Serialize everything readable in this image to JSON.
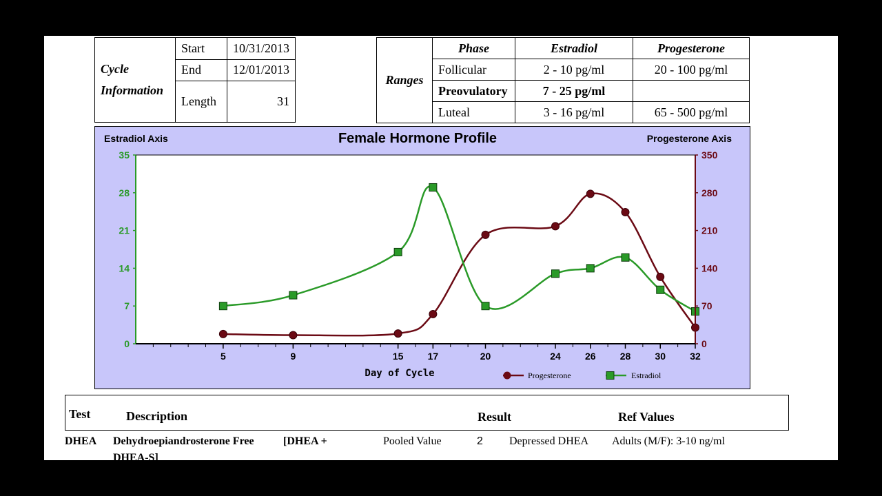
{
  "cycle_info": {
    "label_line1": "Cycle",
    "label_line2": "Information",
    "start_label": "Start",
    "start_value": "10/31/2013",
    "end_label": "End",
    "end_value": "12/01/2013",
    "length_label": "Length",
    "length_value": "31"
  },
  "ranges": {
    "label": "Ranges",
    "headers": [
      "Phase",
      "Estradiol",
      "Progesterone"
    ],
    "rows": [
      {
        "phase": "Follicular",
        "estradiol": "2 - 10 pg/ml",
        "progesterone": "20 - 100 pg/ml"
      },
      {
        "phase": "Preovulatory",
        "estradiol": "7 - 25 pg/ml",
        "progesterone": ""
      },
      {
        "phase": "Luteal",
        "estradiol": "3 - 16 pg/ml",
        "progesterone": "65 - 500 pg/ml"
      }
    ]
  },
  "chart_data": {
    "type": "line",
    "title": "Female Hormone Profile",
    "left_axis_label": "Estradiol Axis",
    "right_axis_label": "Progesterone Axis",
    "xlabel": "Day of Cycle",
    "x": [
      5,
      9,
      15,
      17,
      20,
      24,
      26,
      28,
      30,
      32
    ],
    "x_ticks": [
      "5",
      "9",
      "15",
      "17",
      "20",
      "24",
      "26",
      "28",
      "30",
      "32"
    ],
    "xlim": [
      0,
      32
    ],
    "y_left_lim": [
      0,
      35
    ],
    "y_left_ticks": [
      "0",
      "7",
      "14",
      "21",
      "28",
      "35"
    ],
    "y_right_lim": [
      0,
      350
    ],
    "y_right_ticks": [
      "0",
      "70",
      "140",
      "210",
      "280",
      "350"
    ],
    "series": [
      {
        "name": "Progesterone",
        "axis": "right",
        "color": "#6b0a14",
        "marker": "circle",
        "values": [
          18,
          16,
          19,
          55,
          202,
          218,
          278,
          244,
          124,
          30
        ]
      },
      {
        "name": "Estradiol",
        "axis": "left",
        "color": "#2a9a28",
        "marker": "square",
        "values": [
          7.0,
          9.0,
          17.0,
          29.0,
          7.0,
          13.0,
          14.0,
          16.0,
          10.0,
          6.0
        ]
      }
    ],
    "legend_position": "bottom-right",
    "colors": {
      "background": "#c8c6fa",
      "left_axis": "#2a9a28",
      "right_axis": "#6b0a14"
    }
  },
  "tests": {
    "headers": {
      "test": "Test",
      "description": "Description",
      "result": "Result",
      "ref": "Ref Values"
    },
    "row": {
      "code": "DHEA",
      "description": "Dehydroepiandrosterone Free",
      "description_extra": "[DHEA +",
      "description_line2": "DHEA-S]",
      "type": "Pooled Value",
      "value": "2",
      "result": "Depressed DHEA",
      "ref": "Adults (M/F): 3-10 ng/ml"
    }
  }
}
